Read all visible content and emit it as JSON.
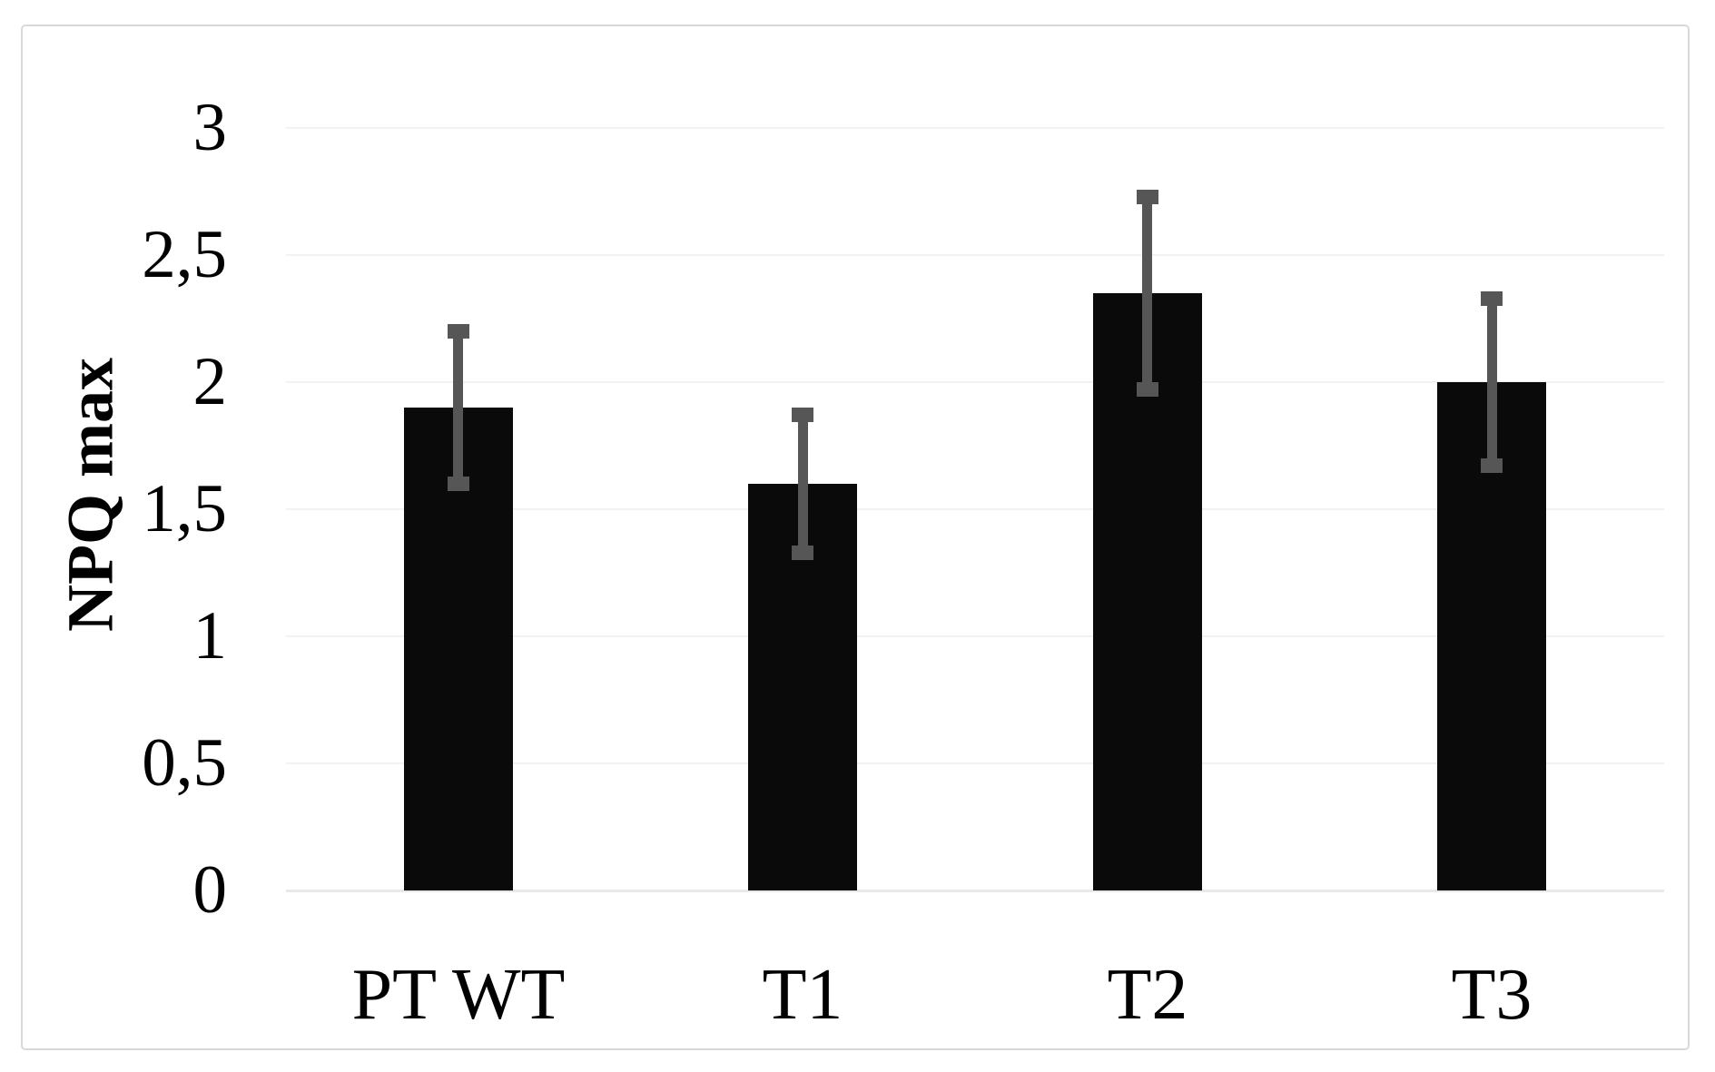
{
  "figure": {
    "background_color": "#ffffff",
    "border_color": "#d9d9d9"
  },
  "chart_data": {
    "type": "bar",
    "title": "",
    "xlabel": "",
    "ylabel": "NPQ max",
    "categories": [
      "PT WT",
      "T1",
      "T2",
      "T3"
    ],
    "values": [
      1.9,
      1.6,
      2.35,
      2.0
    ],
    "error_bars": {
      "plus": [
        0.3,
        0.27,
        0.38,
        0.33
      ],
      "minus": [
        0.3,
        0.27,
        0.38,
        0.33
      ]
    },
    "ylim": [
      0,
      3
    ],
    "ytick_step": 0.5,
    "ytick_labels": [
      "0",
      "0,5",
      "1",
      "1,5",
      "2",
      "2,5",
      "3"
    ],
    "decimal_separator": ",",
    "grid": "horizontal",
    "legend": "none",
    "bar_color": "#0a0a0a",
    "error_bar_color": "#565656",
    "gridline_color": "#f2f2f2",
    "text_color": "#010101"
  }
}
